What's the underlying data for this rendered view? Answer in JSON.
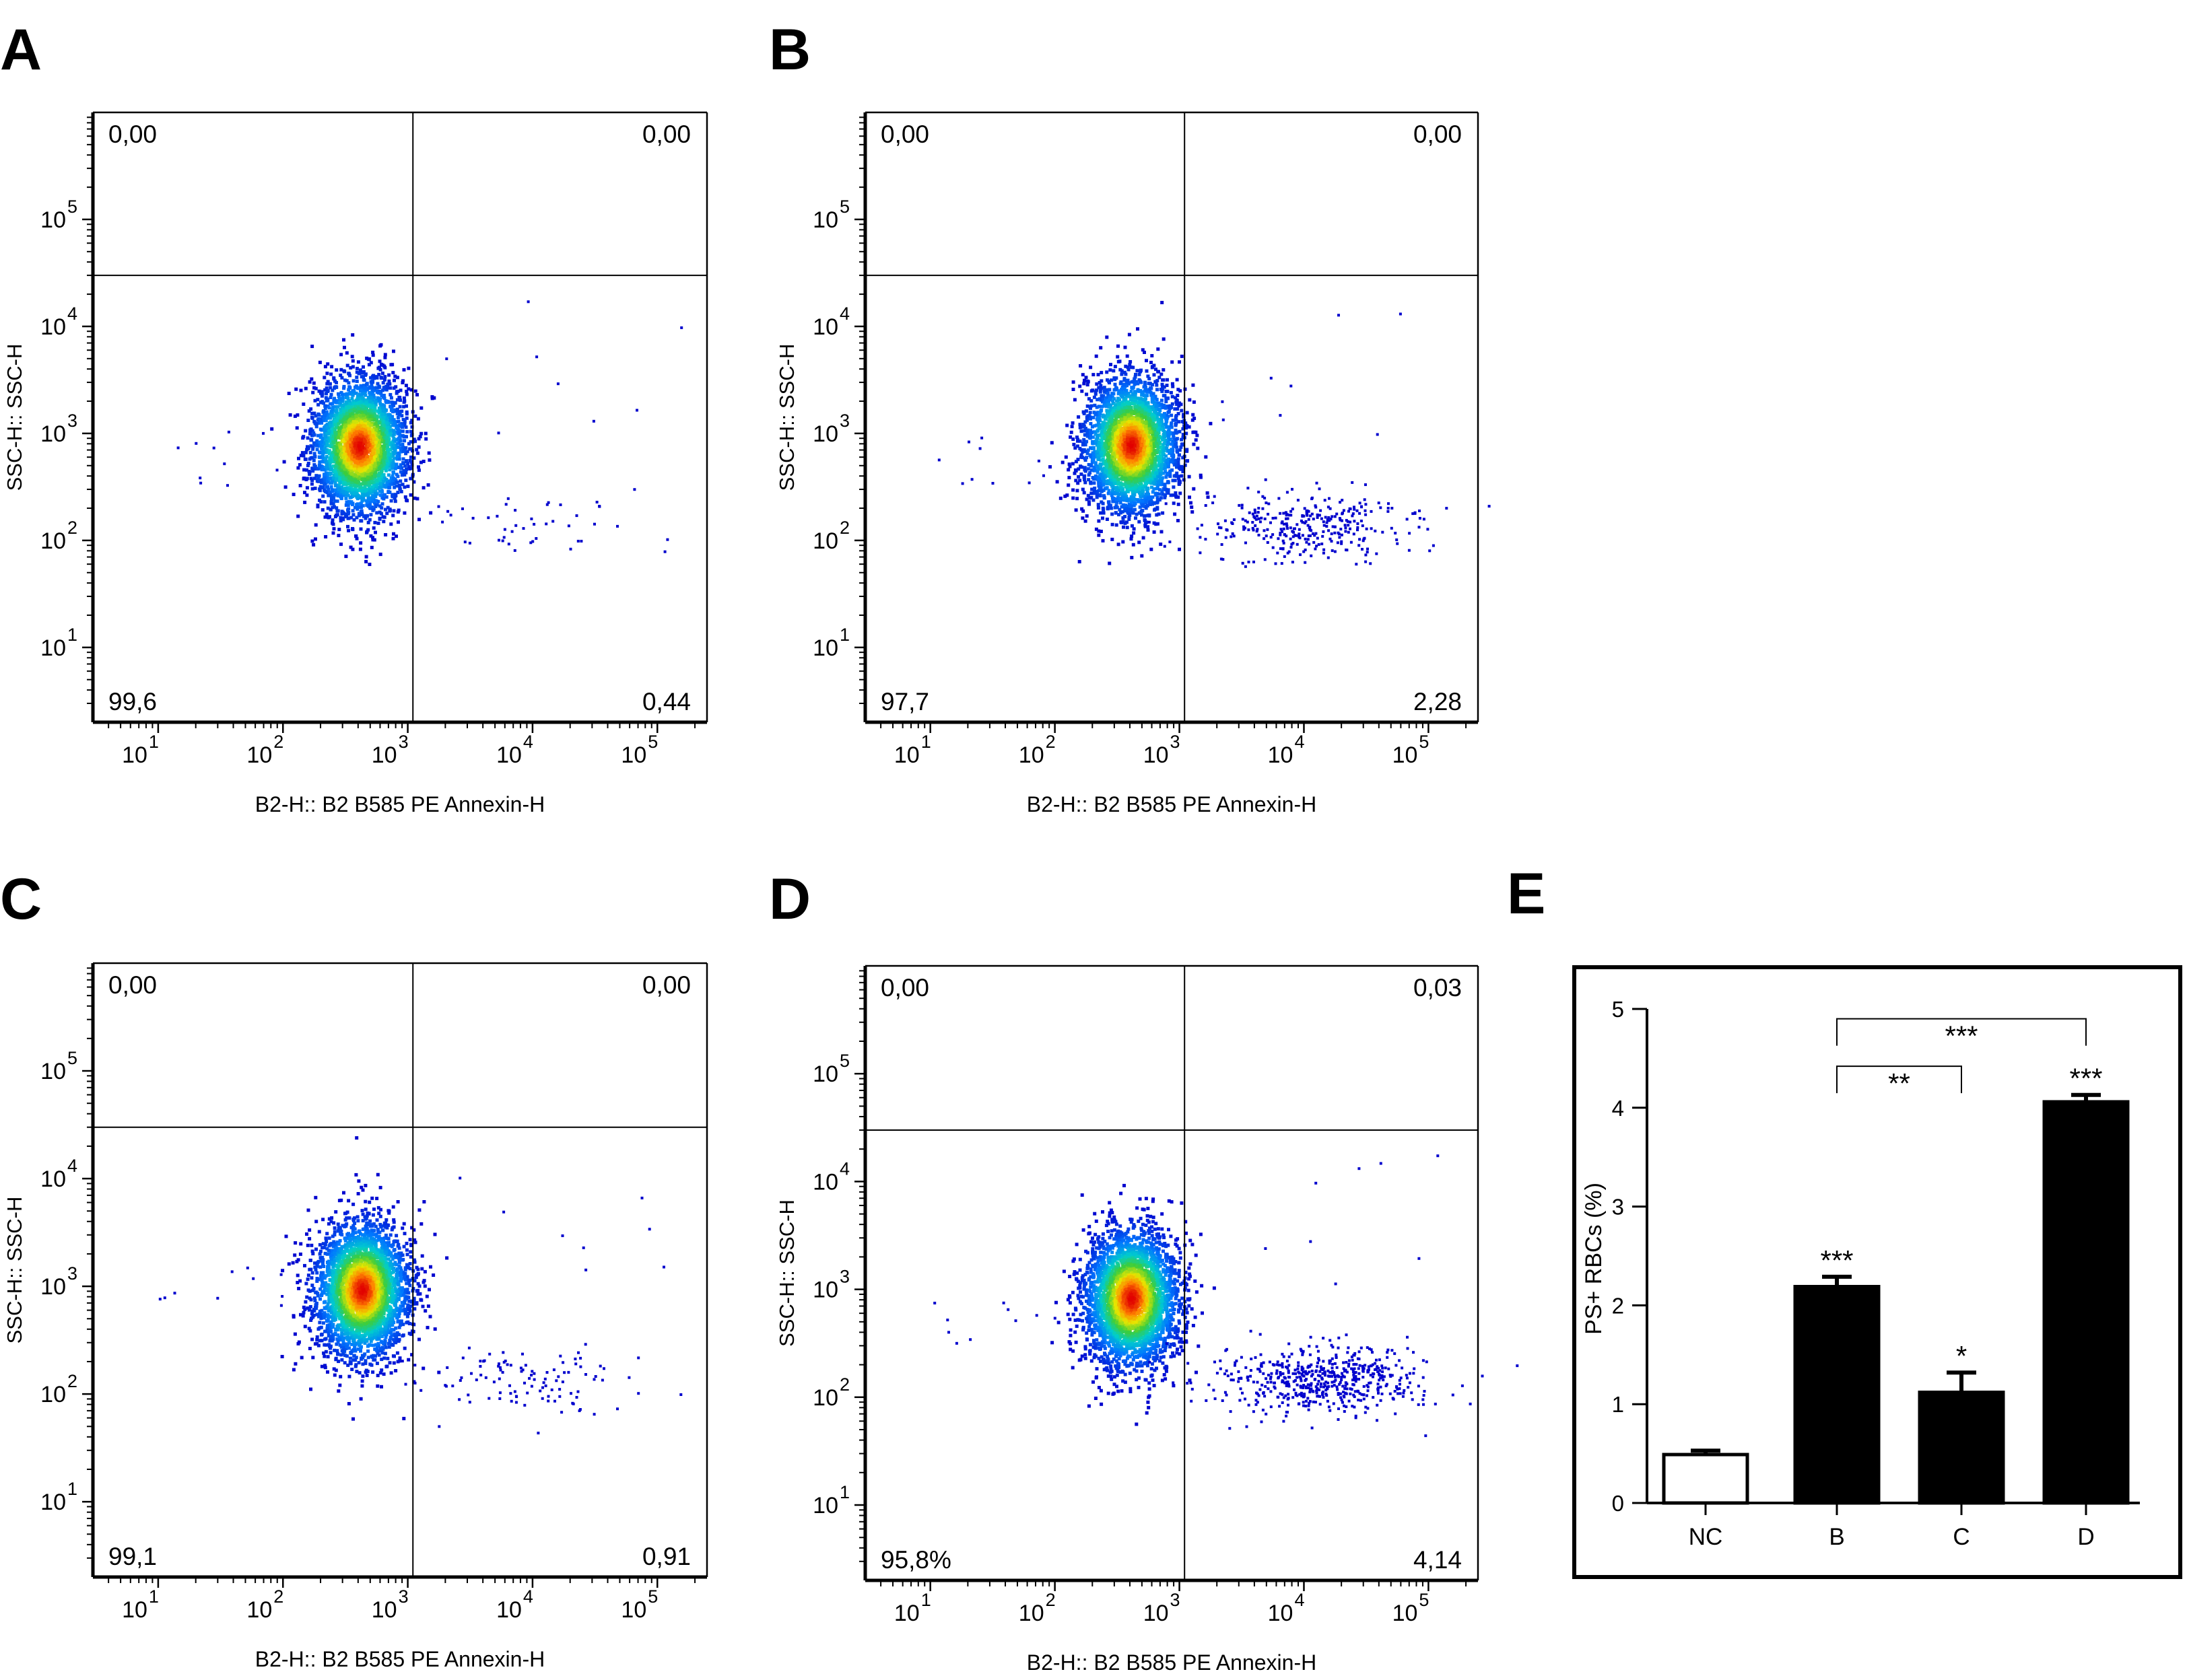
{
  "figure": {
    "panel_letters": [
      "A",
      "B",
      "C",
      "D",
      "E"
    ]
  },
  "chart_data": [
    {
      "type": "scatter",
      "panel": "A",
      "xlabel": "B2-H:: B2 B585 PE Annexin-H",
      "ylabel": "SSC-H:: SSC-H",
      "x_scale": "log",
      "y_scale": "log",
      "xlim": [
        3,
        250000
      ],
      "ylim": [
        2,
        1000000
      ],
      "x_ticks": [
        {
          "base": "10",
          "exp": "1",
          "value": 10
        },
        {
          "base": "10",
          "exp": "2",
          "value": 100
        },
        {
          "base": "10",
          "exp": "3",
          "value": 1000
        },
        {
          "base": "10",
          "exp": "4",
          "value": 10000
        },
        {
          "base": "10",
          "exp": "5",
          "value": 100000
        }
      ],
      "y_ticks": [
        {
          "base": "10",
          "exp": "1",
          "value": 10
        },
        {
          "base": "10",
          "exp": "2",
          "value": 100
        },
        {
          "base": "10",
          "exp": "3",
          "value": 1000
        },
        {
          "base": "10",
          "exp": "4",
          "value": 10000
        },
        {
          "base": "10",
          "exp": "5",
          "value": 100000
        }
      ],
      "gate": {
        "x": 1100,
        "y": 30000
      },
      "quadrants": {
        "upper_left": "0,00",
        "upper_right": "0,00",
        "lower_left": "99,6",
        "lower_right": "0,44"
      },
      "main_population": {
        "x": 400,
        "y": 780,
        "count": 3300
      },
      "tail_population": {
        "x": 8000,
        "y": 140,
        "count": 45
      }
    },
    {
      "type": "scatter",
      "panel": "B",
      "xlabel": "B2-H:: B2 B585 PE Annexin-H",
      "ylabel": "SSC-H:: SSC-H",
      "x_scale": "log",
      "y_scale": "log",
      "xlim": [
        3,
        250000
      ],
      "ylim": [
        2,
        1000000
      ],
      "x_ticks": [
        {
          "base": "10",
          "exp": "1",
          "value": 10
        },
        {
          "base": "10",
          "exp": "2",
          "value": 100
        },
        {
          "base": "10",
          "exp": "3",
          "value": 1000
        },
        {
          "base": "10",
          "exp": "4",
          "value": 10000
        },
        {
          "base": "10",
          "exp": "5",
          "value": 100000
        }
      ],
      "y_ticks": [
        {
          "base": "10",
          "exp": "1",
          "value": 10
        },
        {
          "base": "10",
          "exp": "2",
          "value": 100
        },
        {
          "base": "10",
          "exp": "3",
          "value": 1000
        },
        {
          "base": "10",
          "exp": "4",
          "value": 10000
        },
        {
          "base": "10",
          "exp": "5",
          "value": 100000
        }
      ],
      "gate": {
        "x": 1100,
        "y": 30000
      },
      "quadrants": {
        "upper_left": "0,00",
        "upper_right": "0,00",
        "lower_left": "97,7",
        "lower_right": "2,28"
      },
      "main_population": {
        "x": 400,
        "y": 800,
        "count": 3300
      },
      "tail_population": {
        "x": 10000,
        "y": 140,
        "count": 330
      }
    },
    {
      "type": "scatter",
      "panel": "C",
      "xlabel": "B2-H:: B2 B585 PE Annexin-H",
      "ylabel": "SSC-H:: SSC-H",
      "x_scale": "log",
      "y_scale": "log",
      "xlim": [
        3,
        250000
      ],
      "ylim": [
        2,
        1000000
      ],
      "x_ticks": [
        {
          "base": "10",
          "exp": "1",
          "value": 10
        },
        {
          "base": "10",
          "exp": "2",
          "value": 100
        },
        {
          "base": "10",
          "exp": "3",
          "value": 1000
        },
        {
          "base": "10",
          "exp": "4",
          "value": 10000
        },
        {
          "base": "10",
          "exp": "5",
          "value": 100000
        }
      ],
      "y_ticks": [
        {
          "base": "10",
          "exp": "1",
          "value": 10
        },
        {
          "base": "10",
          "exp": "2",
          "value": 100
        },
        {
          "base": "10",
          "exp": "3",
          "value": 1000
        },
        {
          "base": "10",
          "exp": "4",
          "value": 10000
        },
        {
          "base": "10",
          "exp": "5",
          "value": 100000
        }
      ],
      "gate": {
        "x": 1100,
        "y": 30000
      },
      "quadrants": {
        "upper_left": "0,00",
        "upper_right": "0,00",
        "lower_left": "99,1",
        "lower_right": "0,91"
      },
      "main_population": {
        "x": 420,
        "y": 950,
        "count": 3300
      },
      "tail_population": {
        "x": 8000,
        "y": 150,
        "count": 110
      }
    },
    {
      "type": "scatter",
      "panel": "D",
      "xlabel": "B2-H:: B2 B585 PE Annexin-H",
      "ylabel": "SSC-H:: SSC-H",
      "x_scale": "log",
      "y_scale": "log",
      "xlim": [
        3,
        250000
      ],
      "ylim": [
        2,
        1000000
      ],
      "x_ticks": [
        {
          "base": "10",
          "exp": "1",
          "value": 10
        },
        {
          "base": "10",
          "exp": "2",
          "value": 100
        },
        {
          "base": "10",
          "exp": "3",
          "value": 1000
        },
        {
          "base": "10",
          "exp": "4",
          "value": 10000
        },
        {
          "base": "10",
          "exp": "5",
          "value": 100000
        }
      ],
      "y_ticks": [
        {
          "base": "10",
          "exp": "1",
          "value": 10
        },
        {
          "base": "10",
          "exp": "2",
          "value": 100
        },
        {
          "base": "10",
          "exp": "3",
          "value": 1000
        },
        {
          "base": "10",
          "exp": "4",
          "value": 10000
        },
        {
          "base": "10",
          "exp": "5",
          "value": 100000
        }
      ],
      "gate": {
        "x": 1100,
        "y": 30000
      },
      "quadrants": {
        "upper_left": "0,00",
        "upper_right": "0,03",
        "lower_left": "95,8%",
        "lower_right": "4,14"
      },
      "main_population": {
        "x": 400,
        "y": 850,
        "count": 3300
      },
      "tail_population": {
        "x": 13000,
        "y": 150,
        "count": 560
      }
    },
    {
      "type": "bar",
      "panel": "E",
      "categories": [
        "NC",
        "B",
        "C",
        "D"
      ],
      "values": [
        0.49,
        2.19,
        1.12,
        4.06
      ],
      "errors": [
        0.04,
        0.1,
        0.2,
        0.07
      ],
      "bar_fills": [
        "#ffffff",
        "#000000",
        "#000000",
        "#000000"
      ],
      "significance": [
        "",
        "***",
        "*",
        "***"
      ],
      "brackets": [
        {
          "from": "B",
          "to": "C",
          "label": "**",
          "level": 4.42
        },
        {
          "from": "B",
          "to": "D",
          "label": "***",
          "level": 4.9
        }
      ],
      "xlabel": "",
      "ylabel": "PS+ RBCs (%)",
      "ylim": [
        0,
        5
      ],
      "yticks": [
        "0",
        "1",
        "2",
        "3",
        "4",
        "5"
      ]
    }
  ]
}
